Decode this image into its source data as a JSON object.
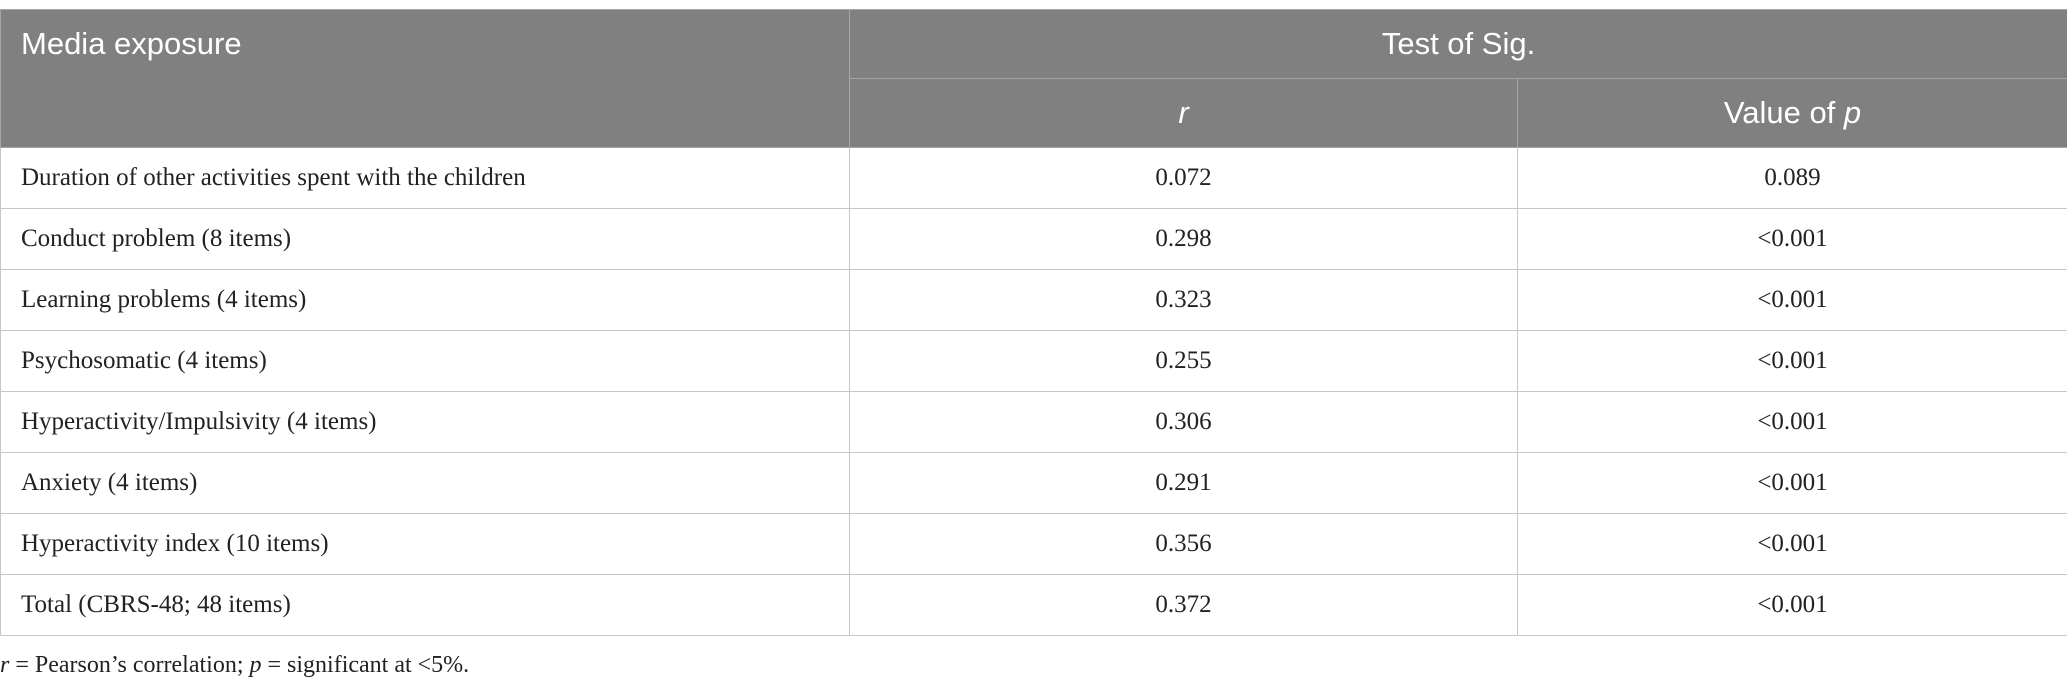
{
  "header": {
    "title": "Media exposure",
    "group": "Test of Sig.",
    "col_r": "r",
    "col_p": [
      "Value of",
      "p"
    ]
  },
  "table": {
    "rows": [
      [
        "Duration of other activities spent with the children",
        "0.072",
        "0.089"
      ],
      [
        "Conduct problem (8 items)",
        "0.298",
        "<0.001"
      ],
      [
        "Learning problems (4 items)",
        "0.323",
        "<0.001"
      ],
      [
        "Psychosomatic (4 items)",
        "0.255",
        "<0.001"
      ],
      [
        "Hyperactivity/Impulsivity (4 items)",
        "0.306",
        "<0.001"
      ],
      [
        "Anxiety (4 items)",
        "0.291",
        "<0.001"
      ],
      [
        "Hyperactivity index (10 items)",
        "0.356",
        "<0.001"
      ],
      [
        "Total (CBRS-48; 48 items)",
        "0.372",
        "<0.001"
      ]
    ]
  },
  "footnote": [
    {
      "text": "r",
      "italic": true
    },
    {
      "text": " = Pearson’s correlation; ",
      "italic": false
    },
    {
      "text": "p",
      "italic": true
    },
    {
      "text": " = significant at <5%.",
      "italic": false
    }
  ]
}
